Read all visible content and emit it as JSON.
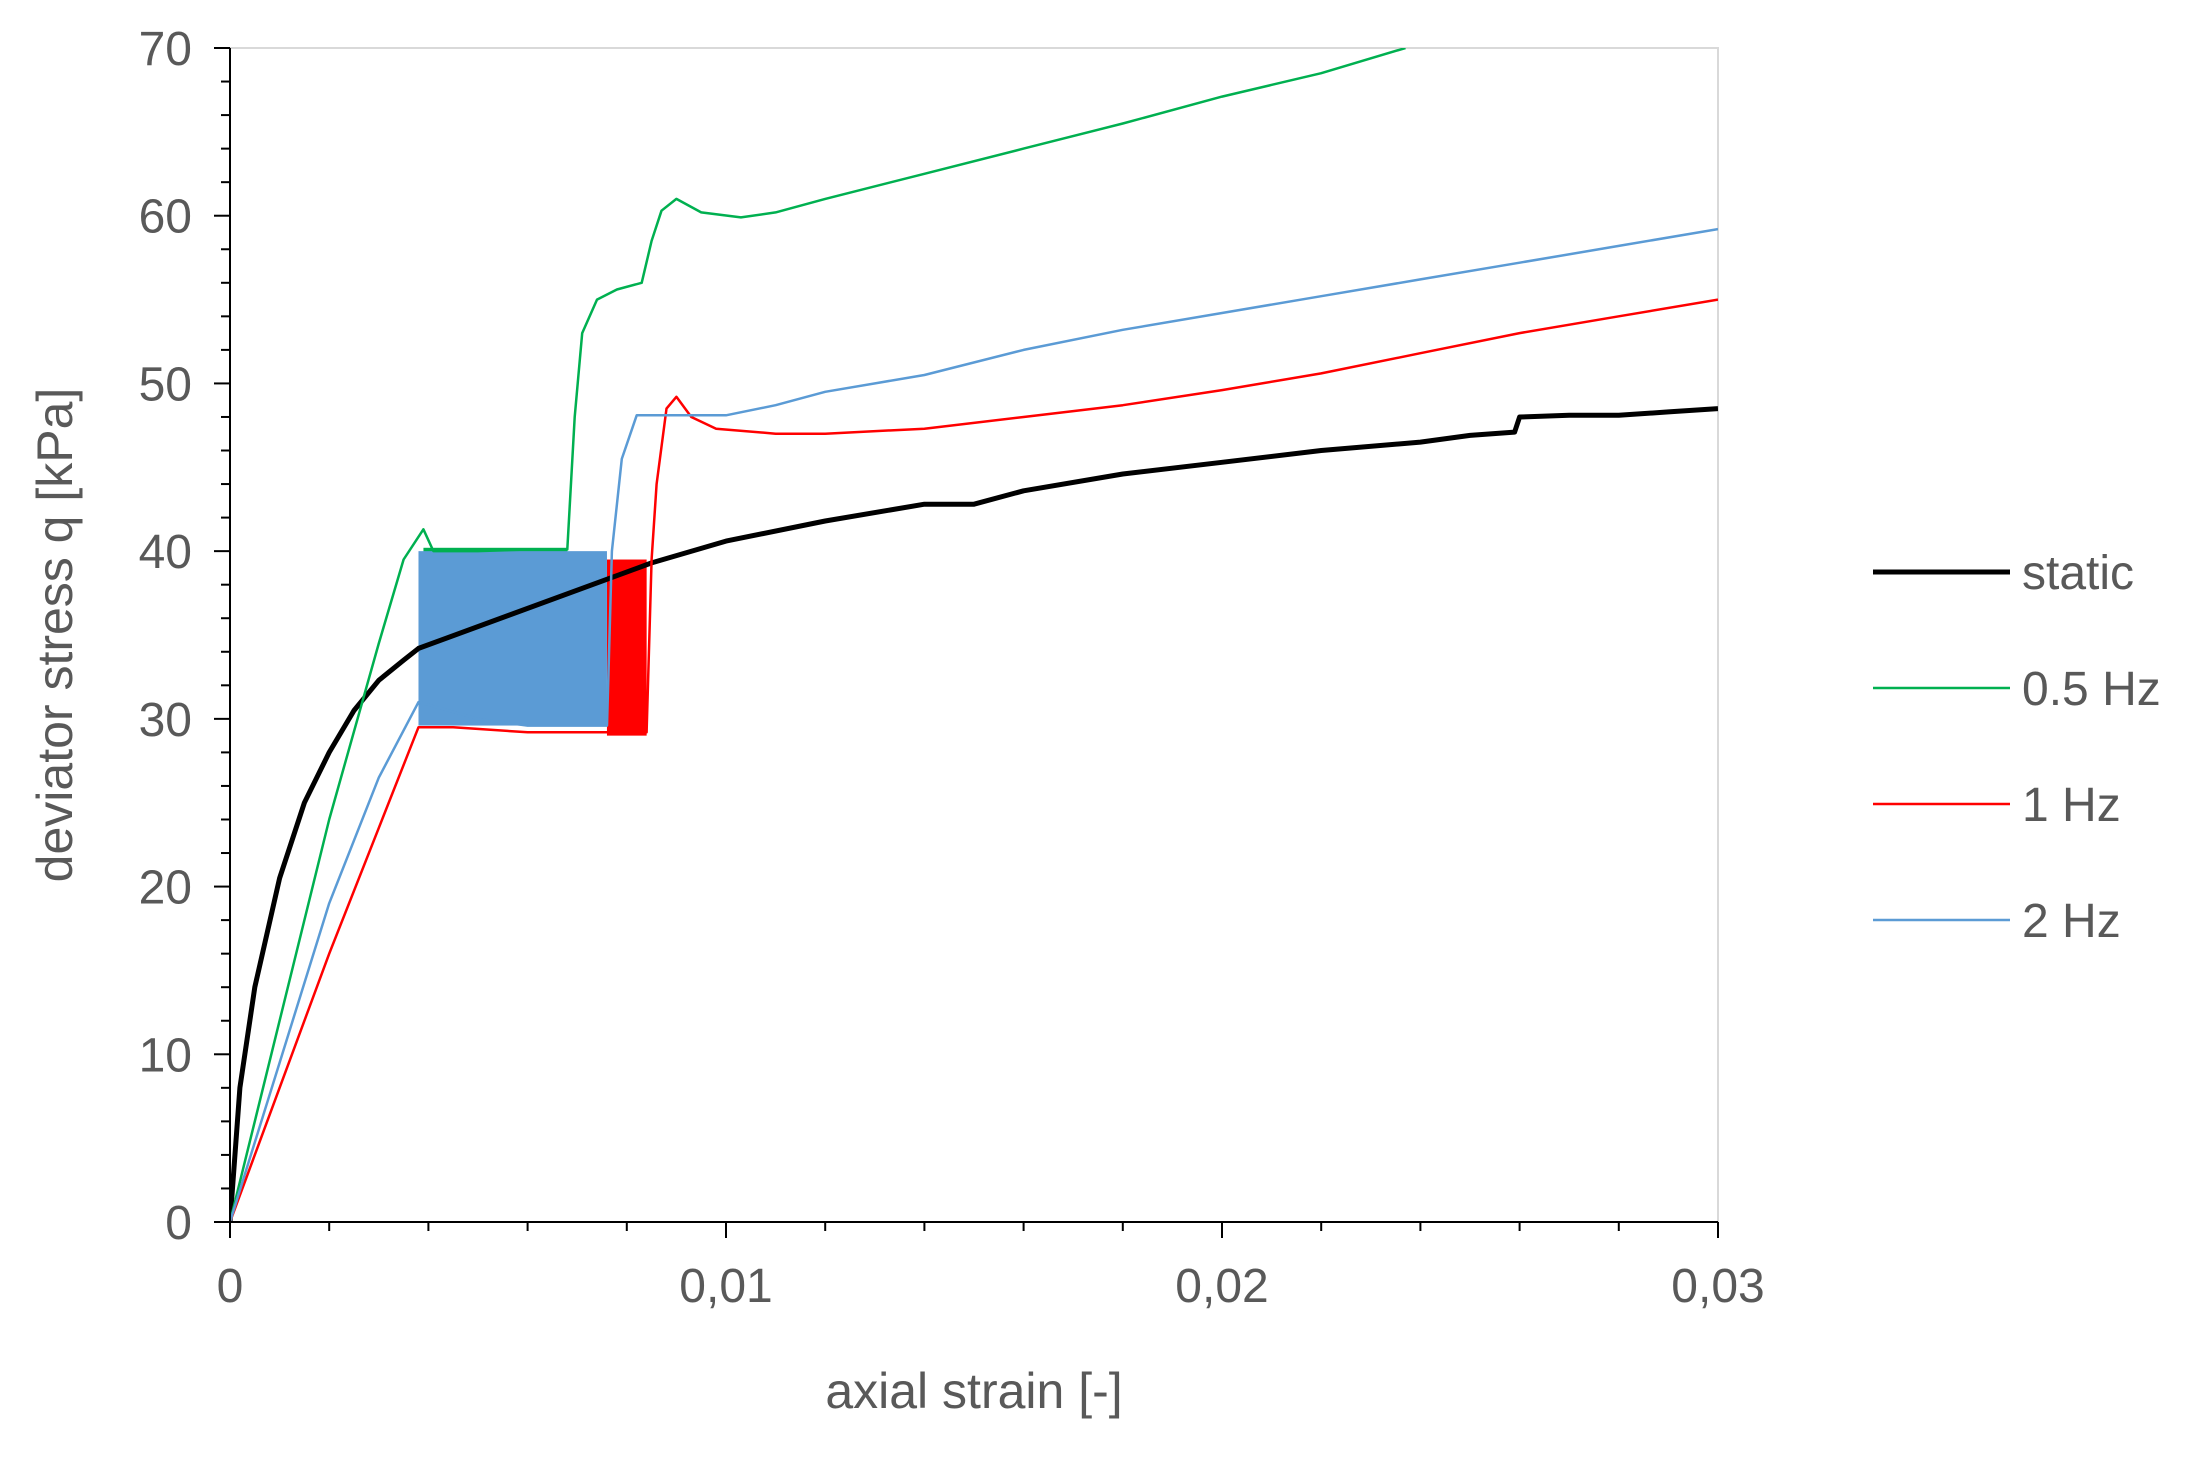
{
  "chart_data": {
    "type": "line",
    "title": "",
    "xlabel": "axial strain [-]",
    "ylabel": "deviator stress q [kPa]",
    "xlim": [
      0,
      0.03
    ],
    "ylim": [
      0,
      70
    ],
    "x_ticks": [
      0,
      0.01,
      0.02,
      0.03
    ],
    "x_tick_labels": [
      "0",
      "0,01",
      "0,02",
      "0,03"
    ],
    "y_ticks": [
      0,
      10,
      20,
      30,
      40,
      50,
      60,
      70
    ],
    "y_tick_labels": [
      "0",
      "10",
      "20",
      "30",
      "40",
      "50",
      "60",
      "70"
    ],
    "grid": false,
    "legend_position": "right",
    "series": [
      {
        "name": "static",
        "color": "#000000",
        "points": [
          [
            0,
            0
          ],
          [
            0.0002,
            8
          ],
          [
            0.0005,
            14
          ],
          [
            0.001,
            20.5
          ],
          [
            0.0015,
            25
          ],
          [
            0.002,
            28
          ],
          [
            0.0025,
            30.5
          ],
          [
            0.003,
            32.3
          ],
          [
            0.0035,
            33.5
          ],
          [
            0.0038,
            34.2
          ],
          [
            0.0085,
            39.3
          ],
          [
            0.01,
            40.6
          ],
          [
            0.012,
            41.8
          ],
          [
            0.014,
            42.8
          ],
          [
            0.015,
            42.8
          ],
          [
            0.016,
            43.6
          ],
          [
            0.018,
            44.6
          ],
          [
            0.02,
            45.3
          ],
          [
            0.022,
            46
          ],
          [
            0.024,
            46.5
          ],
          [
            0.025,
            46.9
          ],
          [
            0.0259,
            47.1
          ],
          [
            0.026,
            48
          ],
          [
            0.027,
            48.1
          ],
          [
            0.028,
            48.1
          ],
          [
            0.029,
            48.3
          ],
          [
            0.03,
            48.5
          ]
        ]
      },
      {
        "name": "0.5 Hz",
        "color": "#00b050",
        "points": [
          [
            0,
            0
          ],
          [
            0.001,
            12
          ],
          [
            0.002,
            24
          ],
          [
            0.003,
            34.5
          ],
          [
            0.0035,
            39.5
          ],
          [
            0.0039,
            41.3
          ],
          [
            0.0041,
            40
          ],
          [
            0.005,
            40
          ],
          [
            0.006,
            40.1
          ],
          [
            0.0068,
            40.1
          ],
          [
            0.00695,
            48
          ],
          [
            0.0071,
            53
          ],
          [
            0.0074,
            55
          ],
          [
            0.0078,
            55.6
          ],
          [
            0.0083,
            56
          ],
          [
            0.0085,
            58.5
          ],
          [
            0.0087,
            60.3
          ],
          [
            0.009,
            61
          ],
          [
            0.0095,
            60.2
          ],
          [
            0.0103,
            59.9
          ],
          [
            0.011,
            60.2
          ],
          [
            0.012,
            61
          ],
          [
            0.014,
            62.5
          ],
          [
            0.016,
            64
          ],
          [
            0.018,
            65.5
          ],
          [
            0.02,
            67.1
          ],
          [
            0.022,
            68.5
          ],
          [
            0.0237,
            70
          ]
        ]
      },
      {
        "name": "1 Hz",
        "color": "#ff0000",
        "points": [
          [
            0,
            0
          ],
          [
            0.001,
            8
          ],
          [
            0.002,
            16
          ],
          [
            0.003,
            23.5
          ],
          [
            0.0038,
            29.5
          ],
          [
            0.0045,
            29.5
          ],
          [
            0.006,
            29.2
          ],
          [
            0.0075,
            29.2
          ],
          [
            0.0084,
            29.2
          ],
          [
            0.0085,
            39.5
          ],
          [
            0.0086,
            44
          ],
          [
            0.0088,
            48.5
          ],
          [
            0.009,
            49.2
          ],
          [
            0.0093,
            48
          ],
          [
            0.0098,
            47.3
          ],
          [
            0.011,
            47
          ],
          [
            0.012,
            47
          ],
          [
            0.014,
            47.3
          ],
          [
            0.016,
            48
          ],
          [
            0.018,
            48.7
          ],
          [
            0.02,
            49.6
          ],
          [
            0.022,
            50.6
          ],
          [
            0.024,
            51.8
          ],
          [
            0.026,
            53
          ],
          [
            0.028,
            54
          ],
          [
            0.03,
            55
          ]
        ]
      },
      {
        "name": "2 Hz",
        "color": "#5b9bd5",
        "points": [
          [
            0,
            0
          ],
          [
            0.001,
            9.5
          ],
          [
            0.002,
            19
          ],
          [
            0.003,
            26.5
          ],
          [
            0.0038,
            31
          ],
          [
            0.005,
            30
          ],
          [
            0.006,
            29.6
          ],
          [
            0.0076,
            29.6
          ],
          [
            0.0077,
            40
          ],
          [
            0.0079,
            45.5
          ],
          [
            0.0082,
            48.1
          ],
          [
            0.009,
            48.1
          ],
          [
            0.01,
            48.1
          ],
          [
            0.011,
            48.7
          ],
          [
            0.012,
            49.5
          ],
          [
            0.014,
            50.5
          ],
          [
            0.016,
            52
          ],
          [
            0.018,
            53.2
          ],
          [
            0.02,
            54.2
          ],
          [
            0.022,
            55.2
          ],
          [
            0.024,
            56.2
          ],
          [
            0.026,
            57.2
          ],
          [
            0.028,
            58.2
          ],
          [
            0.03,
            59.2
          ]
        ]
      }
    ],
    "cyclic_blocks": [
      {
        "series": "0.5 Hz",
        "color": "#00b050",
        "x_range": [
          0.0039,
          0.0068
        ],
        "y_range": [
          29.8,
          40.2
        ]
      },
      {
        "series": "1 Hz",
        "color": "#ff0000",
        "x_range": [
          0.0076,
          0.0084
        ],
        "y_range": [
          29,
          39.5
        ]
      },
      {
        "series": "2 Hz",
        "color": "#5b9bd5",
        "x_range": [
          0.0038,
          0.0076
        ],
        "y_range": [
          29.6,
          40
        ]
      }
    ]
  }
}
